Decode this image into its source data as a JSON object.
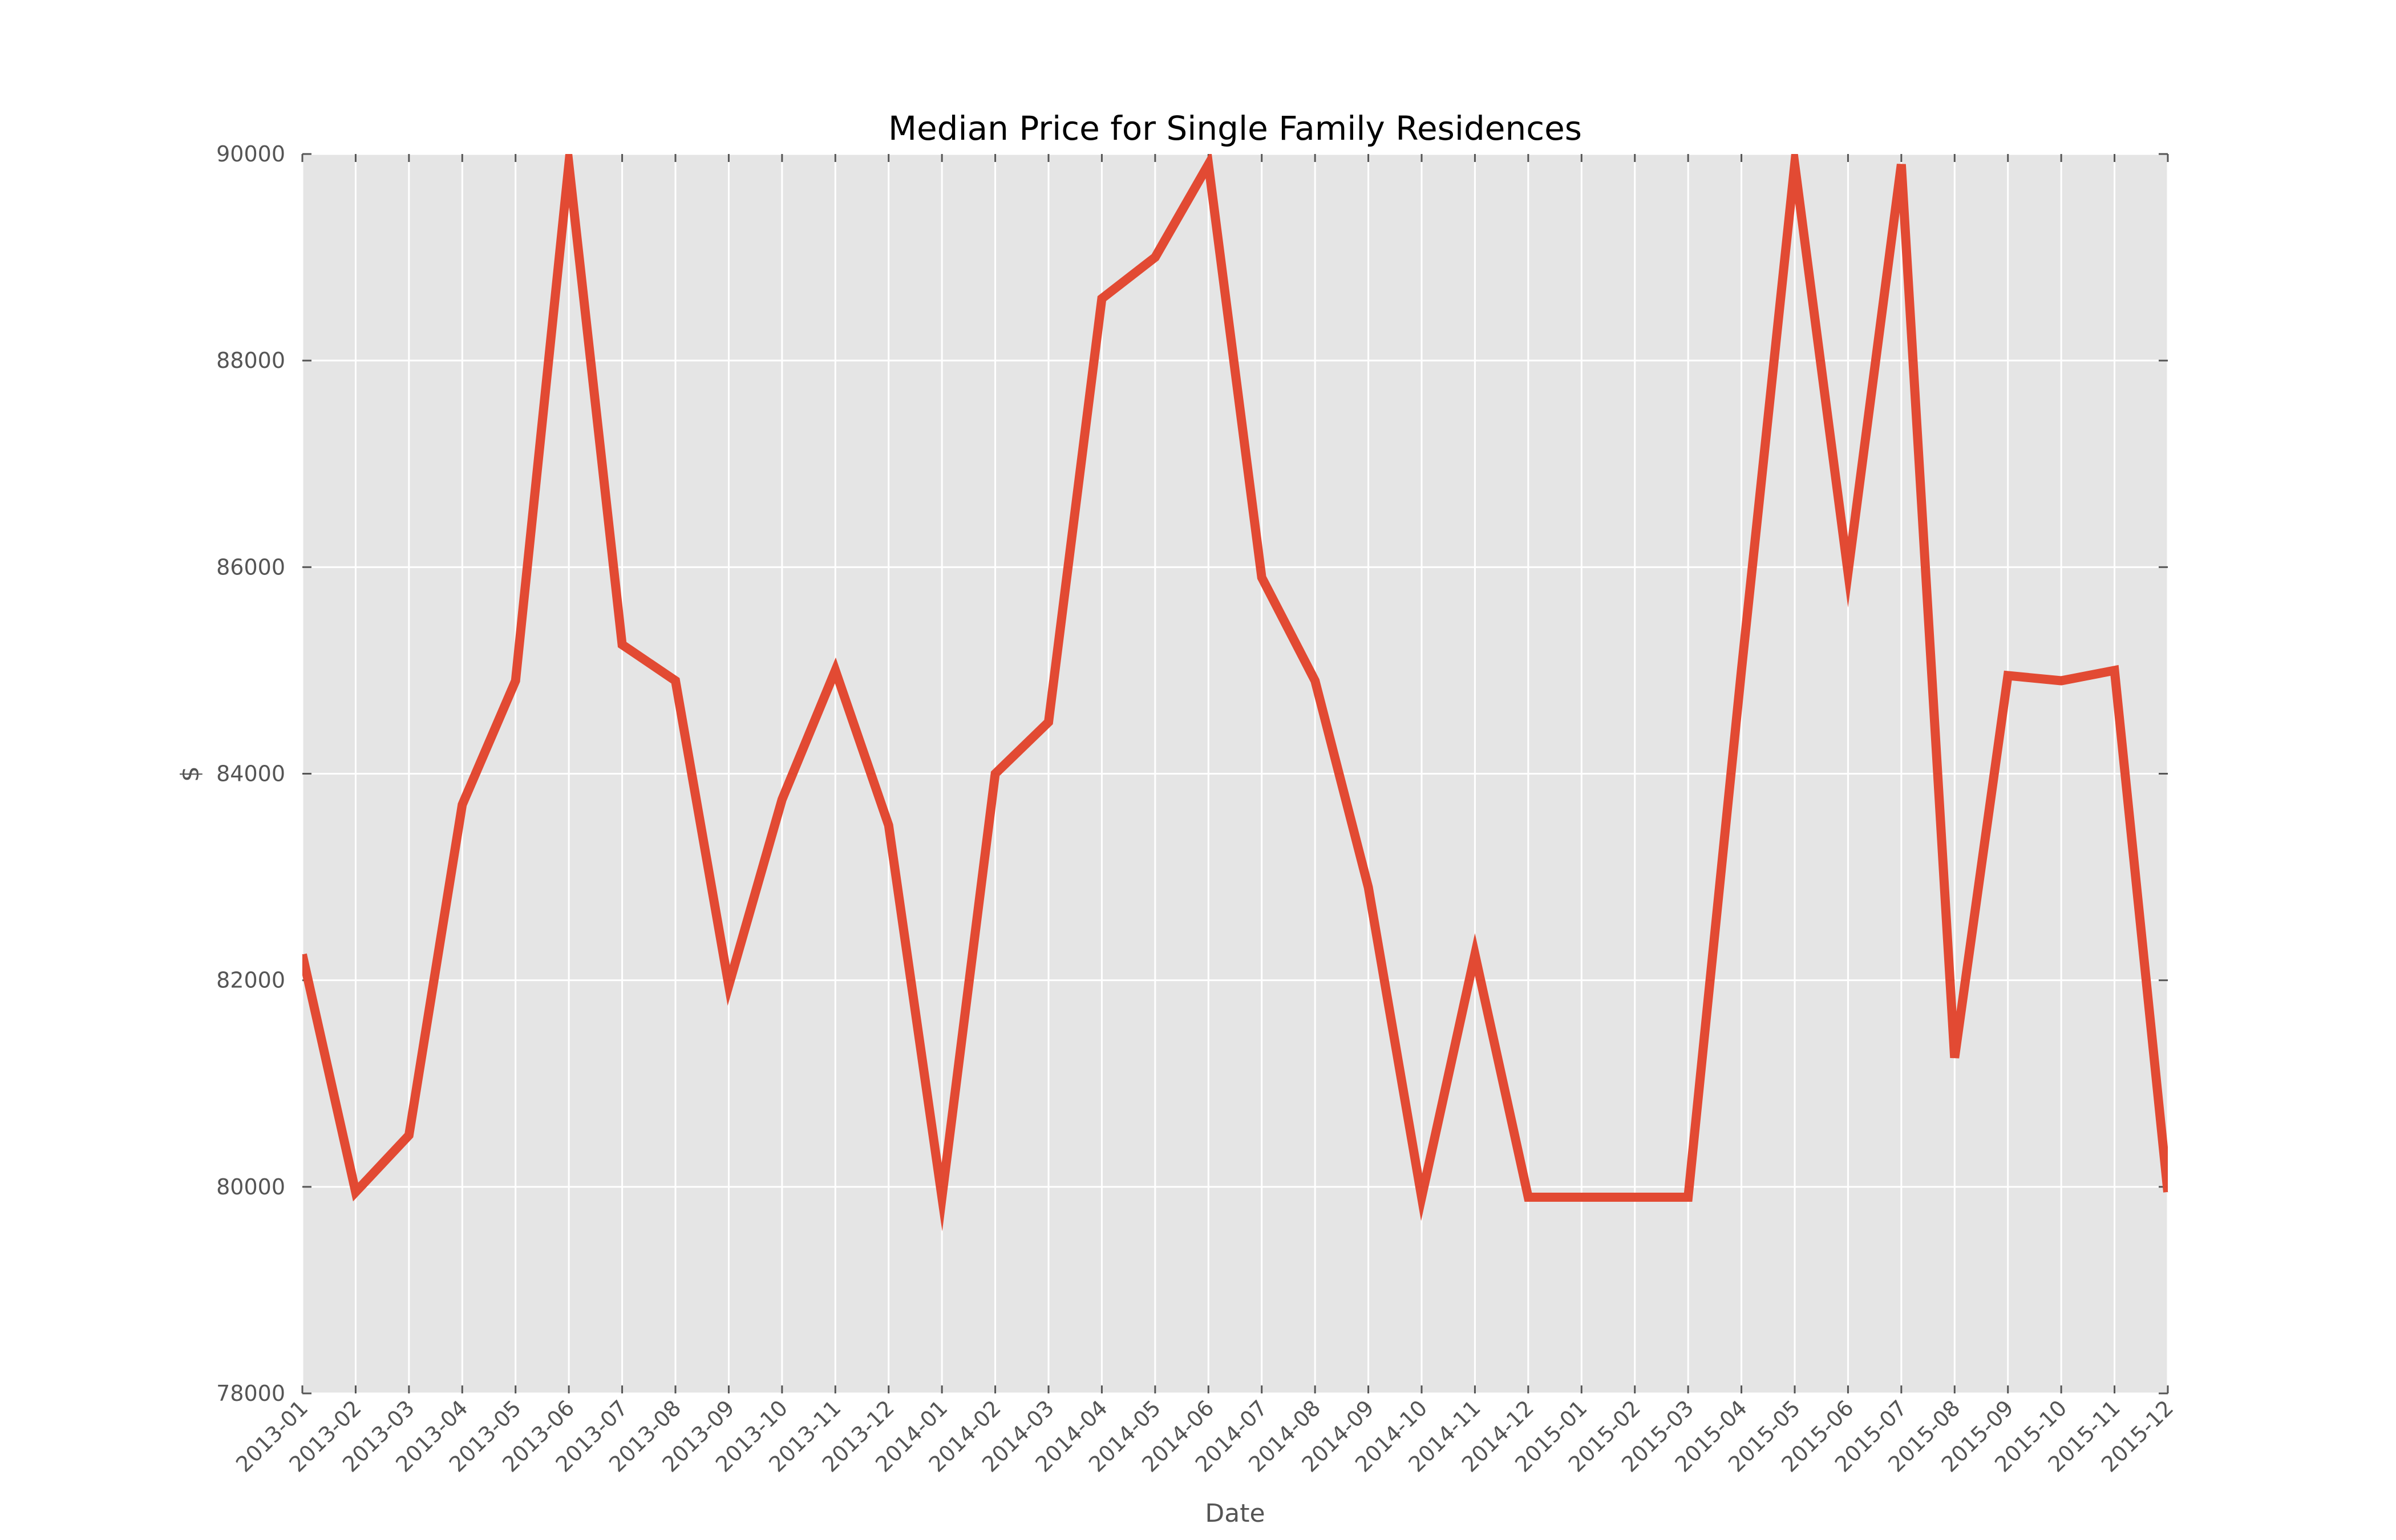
{
  "chart_data": {
    "type": "line",
    "title": "Median Price for Single Family Residences",
    "xlabel": "Date",
    "ylabel": "$",
    "ylim": [
      78000,
      90000
    ],
    "yticks": [
      78000,
      80000,
      82000,
      84000,
      86000,
      88000,
      90000
    ],
    "grid": true,
    "colors": {
      "line": "#E24A33",
      "plot_bg": "#E5E5E5",
      "grid": "#FFFFFF"
    },
    "categories": [
      "2013-01",
      "2013-02",
      "2013-03",
      "2013-04",
      "2013-05",
      "2013-06",
      "2013-07",
      "2013-08",
      "2013-09",
      "2013-10",
      "2013-11",
      "2013-12",
      "2014-01",
      "2014-02",
      "2014-03",
      "2014-04",
      "2014-05",
      "2014-06",
      "2014-07",
      "2014-08",
      "2014-09",
      "2014-10",
      "2014-11",
      "2014-12",
      "2015-01",
      "2015-02",
      "2015-03",
      "2015-04",
      "2015-05",
      "2015-06",
      "2015-07",
      "2015-08",
      "2015-09",
      "2015-10",
      "2015-11",
      "2015-12"
    ],
    "series": [
      {
        "values": [
          82250,
          79950,
          80500,
          83700,
          84900,
          89900,
          85250,
          84900,
          81950,
          83750,
          85000,
          83500,
          79900,
          84000,
          84500,
          88600,
          89000,
          89900,
          85900,
          84900,
          82900,
          79900,
          82250,
          79900,
          79900,
          79900,
          79900,
          85000,
          89900,
          85950,
          89900,
          81250,
          84950,
          84900,
          85000,
          79950
        ]
      }
    ]
  }
}
